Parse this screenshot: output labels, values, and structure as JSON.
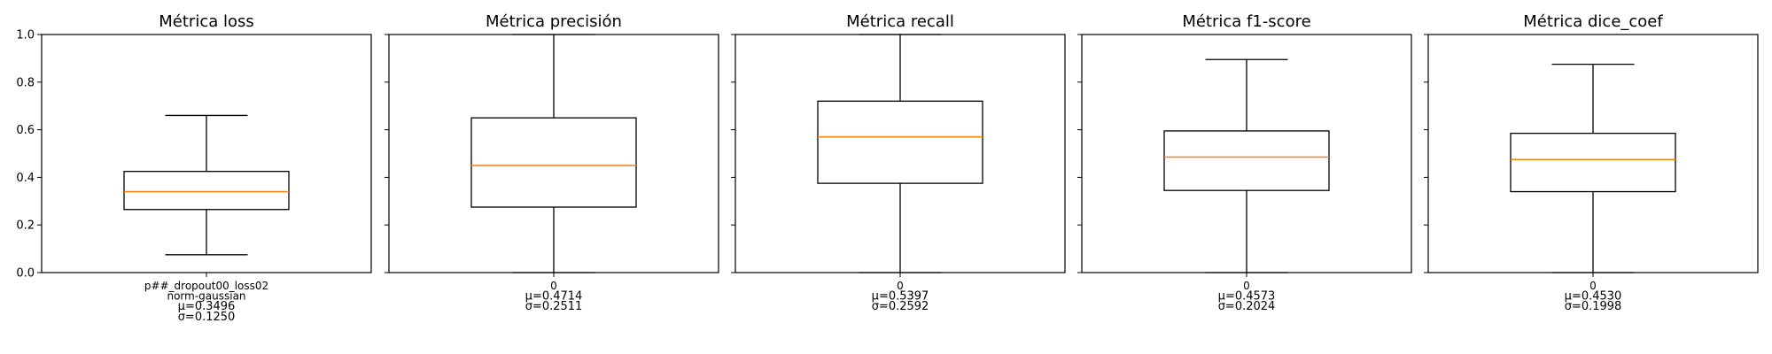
{
  "figure": {
    "colors": {
      "box": "#000000",
      "median": "#ff7f0e",
      "frame": "#000000"
    }
  },
  "y_ticks": [
    "0.0",
    "0.2",
    "0.4",
    "0.6",
    "0.8",
    "1.0"
  ],
  "chart_data": [
    {
      "type": "box",
      "title": "Métrica loss",
      "ylim": [
        0,
        1
      ],
      "grid": false,
      "x_tick_lines": [
        "p##_dropout00_loss02",
        "norm-gaussian"
      ],
      "stat_lines": [
        "μ=0.3496",
        "σ=0.1250"
      ],
      "box": {
        "whisker_low": 0.075,
        "q1": 0.265,
        "median": 0.34,
        "q3": 0.425,
        "whisker_high": 0.66
      },
      "mean": 0.3496,
      "std": 0.125
    },
    {
      "type": "box",
      "title": "Métrica precisión",
      "ylim": [
        0,
        1
      ],
      "grid": false,
      "x_tick_lines": [
        "0"
      ],
      "stat_lines": [
        "μ=0.4714",
        "σ=0.2511"
      ],
      "box": {
        "whisker_low": 0.0,
        "q1": 0.275,
        "median": 0.45,
        "q3": 0.65,
        "whisker_high": 1.0
      },
      "mean": 0.4714,
      "std": 0.2511
    },
    {
      "type": "box",
      "title": "Métrica recall",
      "ylim": [
        0,
        1
      ],
      "grid": false,
      "x_tick_lines": [
        "0"
      ],
      "stat_lines": [
        "μ=0.5397",
        "σ=0.2592"
      ],
      "box": {
        "whisker_low": 0.0,
        "q1": 0.375,
        "median": 0.57,
        "q3": 0.72,
        "whisker_high": 1.0
      },
      "mean": 0.5397,
      "std": 0.2592
    },
    {
      "type": "box",
      "title": "Métrica f1-score",
      "ylim": [
        0,
        1
      ],
      "grid": false,
      "x_tick_lines": [
        "0"
      ],
      "stat_lines": [
        "μ=0.4573",
        "σ=0.2024"
      ],
      "box": {
        "whisker_low": 0.0,
        "q1": 0.345,
        "median": 0.485,
        "q3": 0.595,
        "whisker_high": 0.895
      },
      "mean": 0.4573,
      "std": 0.2024
    },
    {
      "type": "box",
      "title": "Métrica dice_coef",
      "ylim": [
        0,
        1
      ],
      "grid": false,
      "x_tick_lines": [
        "0"
      ],
      "stat_lines": [
        "μ=0.4530",
        "σ=0.1998"
      ],
      "box": {
        "whisker_low": 0.0,
        "q1": 0.34,
        "median": 0.475,
        "q3": 0.585,
        "whisker_high": 0.875
      },
      "mean": 0.453,
      "std": 0.1998
    }
  ]
}
